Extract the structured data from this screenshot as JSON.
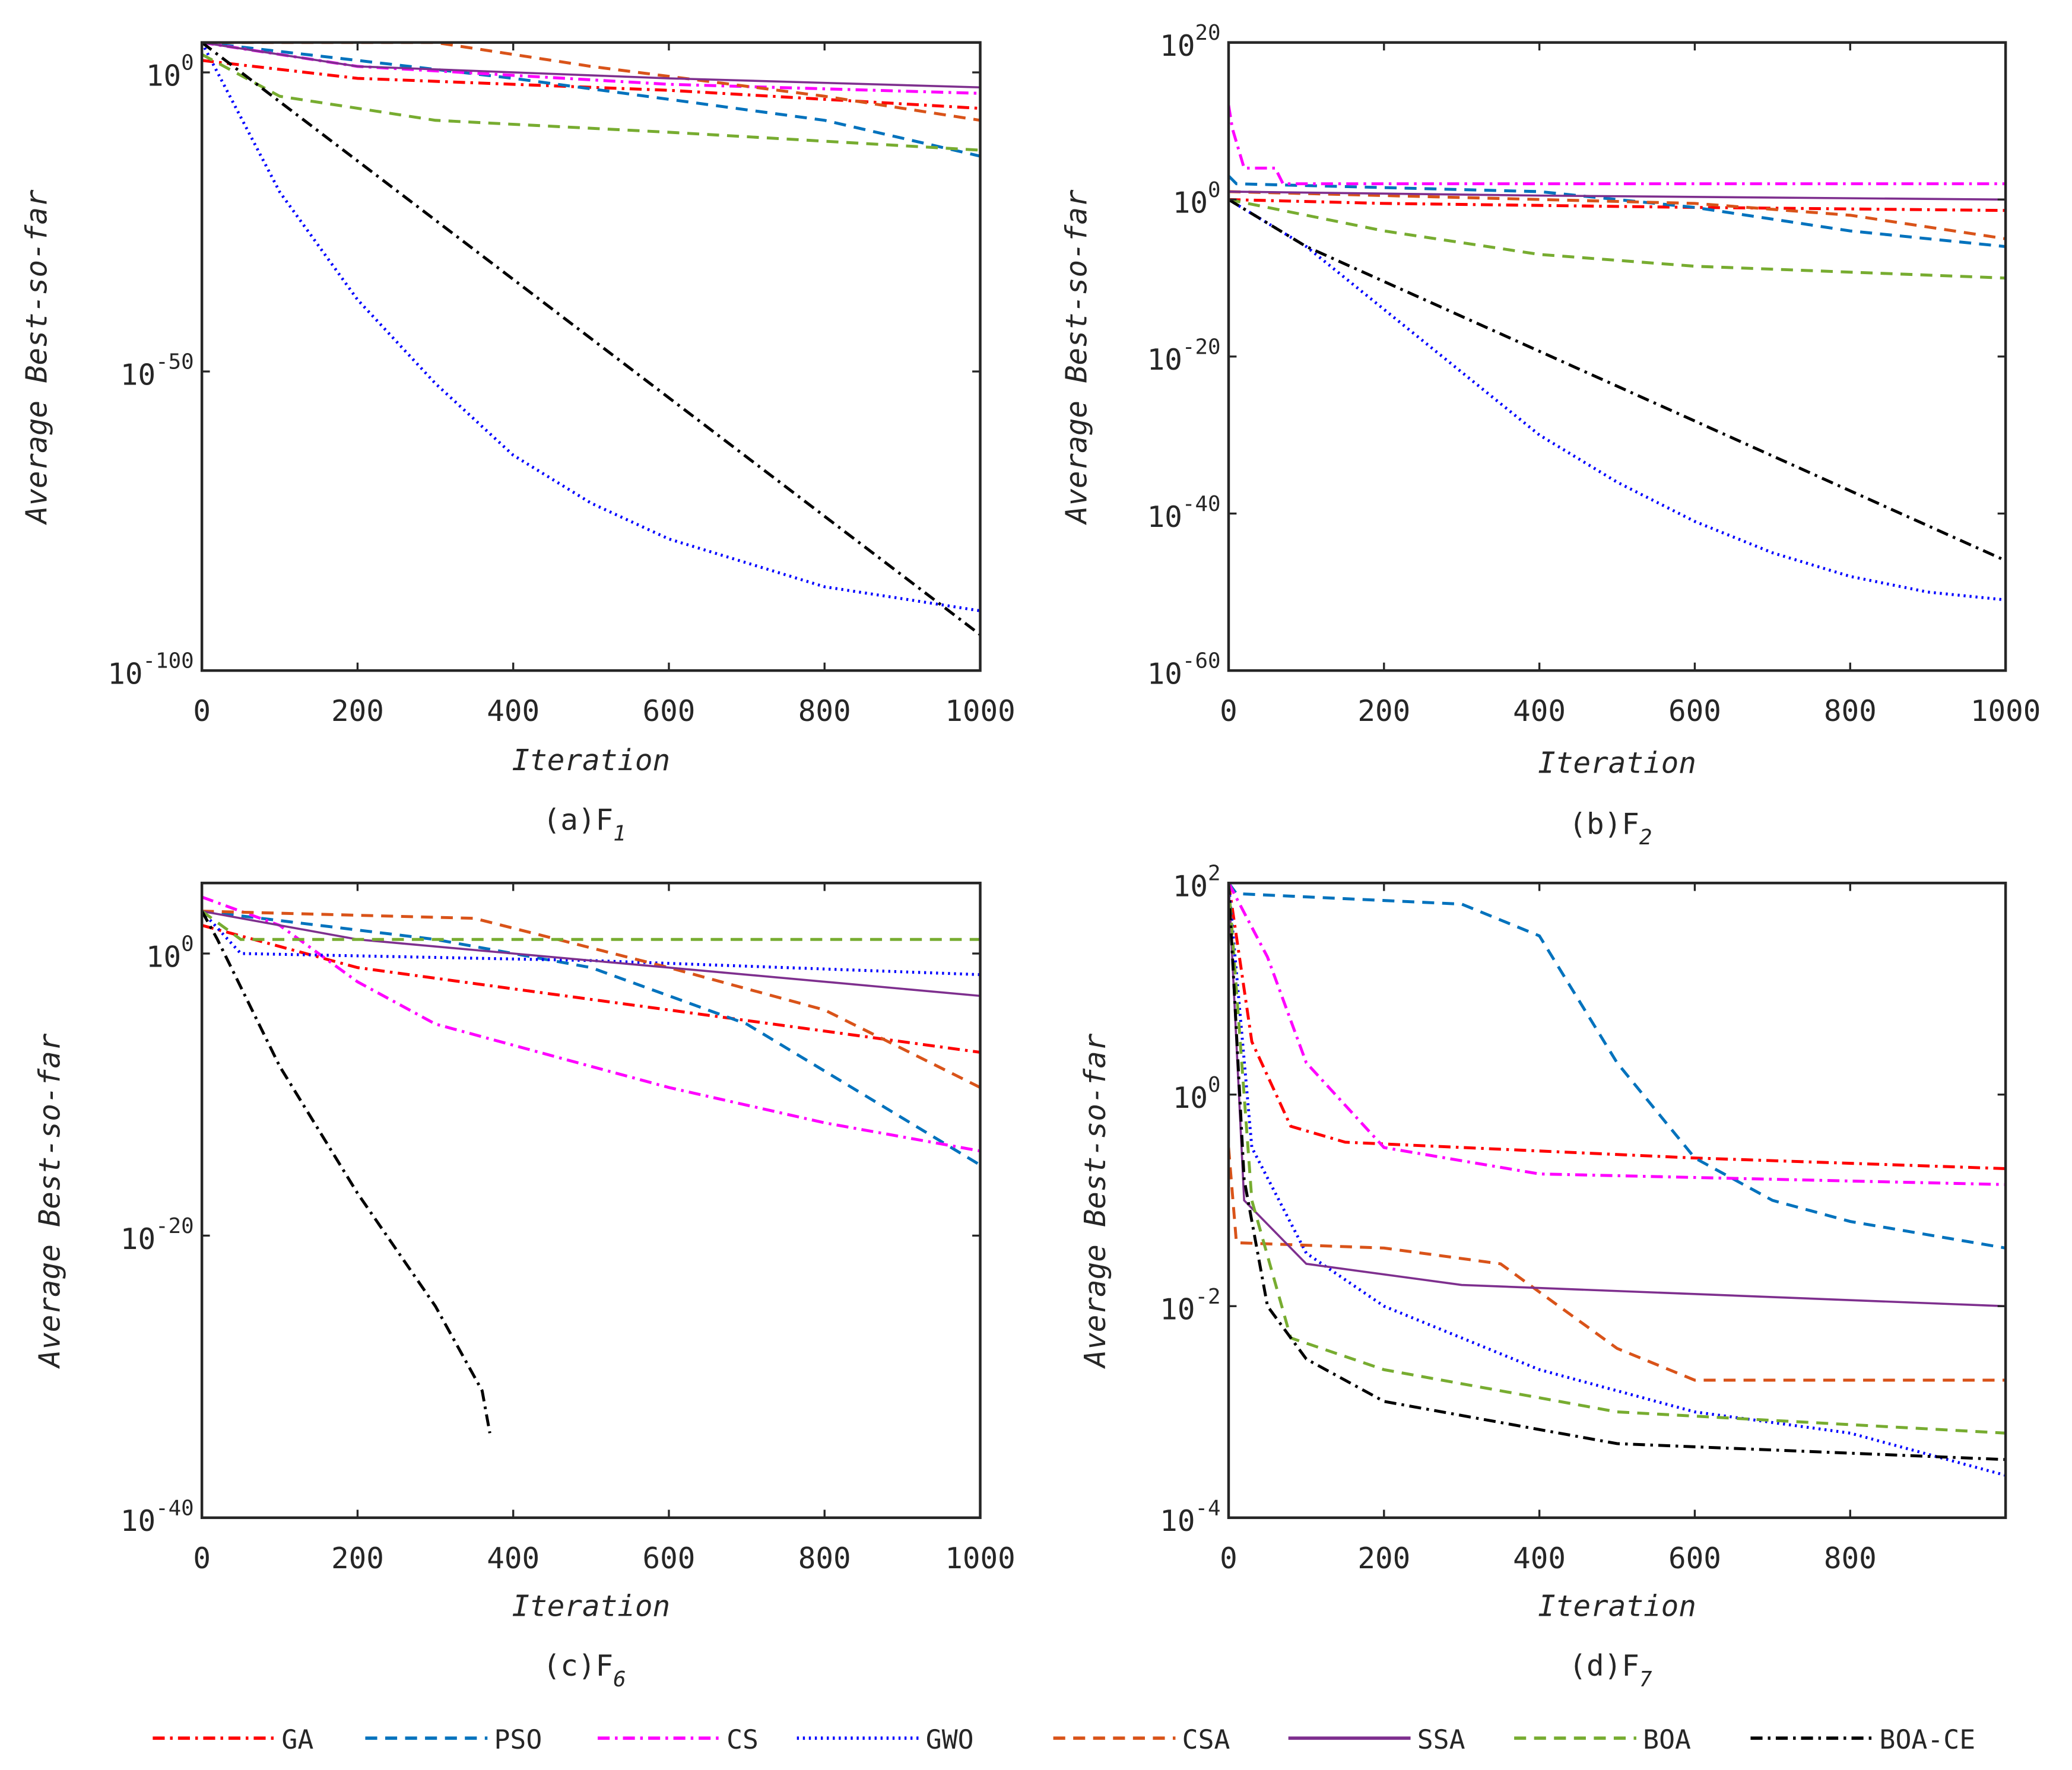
{
  "chart_data": [
    {
      "type": "line",
      "id": "a",
      "caption": "(a)F",
      "caption_sub": "1",
      "xlabel": "Iteration",
      "ylabel": "Average Best-so-far",
      "yscale": "log",
      "xlim": [
        0,
        1000
      ],
      "ylim": [
        1e-100,
        100000.0
      ],
      "xticks": [
        0,
        200,
        400,
        600,
        800,
        1000
      ],
      "yticks_exp": [
        "0",
        "-50",
        "-100"
      ],
      "yticks": [
        1,
        1e-50,
        1e-100
      ],
      "series": [
        {
          "name": "GA",
          "x": [
            0,
            200,
            600,
            1000
          ],
          "y": [
            100.0,
            0.1,
            0.001,
            1e-06
          ]
        },
        {
          "name": "PSO",
          "x": [
            0,
            200,
            400,
            600,
            800,
            1000
          ],
          "y": [
            100000.0,
            100.0,
            0.1,
            3.1623e-05,
            1e-08,
            1e-14
          ]
        },
        {
          "name": "CS",
          "x": [
            0,
            200,
            600,
            1000
          ],
          "y": [
            100000.0,
            10.0,
            0.01,
            0.00031623
          ]
        },
        {
          "name": "GWO",
          "x": [
            0,
            100,
            200,
            300,
            400,
            500,
            600,
            700,
            800,
            900,
            1000
          ],
          "y": [
            100000.0,
            1e-20,
            1e-38,
            1e-52,
            1e-64,
            1e-72,
            1e-78,
            1e-82,
            1e-86,
            1e-88,
            1e-90
          ]
        },
        {
          "name": "CSA",
          "x": [
            0,
            300,
            500,
            800,
            1000
          ],
          "y": [
            100000.0,
            100000.0,
            10.0,
            0.0001,
            1e-08
          ]
        },
        {
          "name": "SSA",
          "x": [
            0,
            200,
            600,
            1000
          ],
          "y": [
            100000.0,
            10.0,
            0.1,
            0.0031623
          ]
        },
        {
          "name": "BOA",
          "x": [
            0,
            100,
            300,
            600,
            1000
          ],
          "y": [
            1000.0,
            0.0001,
            1e-08,
            1e-10,
            1e-13
          ]
        },
        {
          "name": "BOA-CE",
          "x": [
            0,
            1000
          ],
          "y": [
            100000.0,
            1e-94
          ]
        }
      ]
    },
    {
      "type": "line",
      "id": "b",
      "caption": "(b)F",
      "caption_sub": "2",
      "xlabel": "Iteration",
      "ylabel": "Average Best-so-far",
      "yscale": "log",
      "xlim": [
        0,
        1000
      ],
      "ylim": [
        1e-60,
        1e+20
      ],
      "xticks": [
        0,
        200,
        400,
        600,
        800,
        1000
      ],
      "yticks_exp": [
        "20",
        "0",
        "-20",
        "-40",
        "-60"
      ],
      "yticks": [
        1e+20,
        1,
        1e-20,
        1e-40,
        1e-60
      ],
      "series": [
        {
          "name": "GA",
          "x": [
            0,
            200,
            600,
            1000
          ],
          "y": [
            1,
            0.31623,
            0.1,
            0.039811
          ]
        },
        {
          "name": "PSO",
          "x": [
            0,
            10,
            400,
            600,
            800,
            1000
          ],
          "y": [
            1000.0,
            100.0,
            10.0,
            0.1,
            0.0001,
            1e-06
          ]
        },
        {
          "name": "CS",
          "x": [
            0,
            5,
            20,
            60,
            70,
            1000
          ],
          "y": [
            1000000000000.0,
            1000000000.0,
            10000.0,
            10000.0,
            100.0,
            100.0
          ]
        },
        {
          "name": "GWO",
          "x": [
            0,
            100,
            200,
            300,
            400,
            500,
            600,
            700,
            800,
            900,
            1000
          ],
          "y": [
            1,
            1e-06,
            1e-14,
            1e-22,
            1e-30,
            1e-36,
            1e-41,
            1e-45,
            1e-48,
            1e-50,
            1e-51
          ]
        },
        {
          "name": "CSA",
          "x": [
            0,
            600,
            800,
            1000
          ],
          "y": [
            10.0,
            0.31623,
            0.01,
            1e-05
          ]
        },
        {
          "name": "SSA",
          "x": [
            0,
            400,
            1000
          ],
          "y": [
            10.0,
            3.1623,
            1
          ]
        },
        {
          "name": "BOA",
          "x": [
            0,
            200,
            400,
            600,
            1000
          ],
          "y": [
            1,
            0.0001,
            1e-07,
            3.1623e-09,
            1e-10
          ]
        },
        {
          "name": "BOA-CE",
          "x": [
            0,
            100,
            1000
          ],
          "y": [
            1,
            1e-06,
            1e-46
          ]
        }
      ]
    },
    {
      "type": "line",
      "id": "c",
      "caption": "(c)F",
      "caption_sub": "6",
      "xlabel": "Iteration",
      "ylabel": "Average Best-so-far",
      "yscale": "log",
      "xlim": [
        0,
        1000
      ],
      "ylim": [
        1e-40,
        100000.0
      ],
      "xticks": [
        0,
        200,
        400,
        600,
        800,
        1000
      ],
      "yticks_exp": [
        "0",
        "-20",
        "-40"
      ],
      "yticks": [
        1,
        1e-20,
        1e-40
      ],
      "series": [
        {
          "name": "GA",
          "x": [
            0,
            200,
            400,
            600,
            800,
            1000
          ],
          "y": [
            100.0,
            0.1,
            0.0031623,
            0.0001,
            3.1623e-06,
            1e-07
          ]
        },
        {
          "name": "PSO",
          "x": [
            0,
            300,
            500,
            700,
            850,
            1000
          ],
          "y": [
            1000.0,
            10.0,
            0.1,
            1e-05,
            1e-10,
            1e-15
          ]
        },
        {
          "name": "CS",
          "x": [
            0,
            100,
            200,
            300,
            500,
            600,
            800,
            1000
          ],
          "y": [
            10000.0,
            100.0,
            0.01,
            1e-05,
            1e-08,
            3.1623e-10,
            1e-12,
            1e-14
          ]
        },
        {
          "name": "GWO",
          "x": [
            0,
            50,
            500,
            1000
          ],
          "y": [
            1000.0,
            1,
            0.31623,
            0.031623
          ]
        },
        {
          "name": "CSA",
          "x": [
            0,
            350,
            600,
            800,
            1000
          ],
          "y": [
            1000.0,
            316.23,
            0.1,
            0.0001,
            3.1623e-10
          ]
        },
        {
          "name": "SSA",
          "x": [
            0,
            200,
            600,
            1000
          ],
          "y": [
            1000.0,
            10.0,
            0.1,
            0.001
          ]
        },
        {
          "name": "BOA",
          "x": [
            0,
            50,
            1000
          ],
          "y": [
            1000.0,
            10.0,
            10.0
          ]
        },
        {
          "name": "BOA-CE",
          "x": [
            0,
            20,
            100,
            200,
            300,
            360,
            370
          ],
          "y": [
            1000.0,
            10.0,
            1e-08,
            1e-17,
            1e-25,
            1e-31,
            1e-34
          ]
        }
      ]
    },
    {
      "type": "line",
      "id": "d",
      "caption": "(d)F",
      "caption_sub": "7",
      "xlabel": "Iteration",
      "ylabel": "Average Best-so-far",
      "yscale": "log",
      "xlim": [
        0,
        1000
      ],
      "ylim": [
        0.0001,
        100.0
      ],
      "xticks": [
        0,
        200,
        400,
        600,
        800
      ],
      "yticks_exp": [
        "2",
        "0",
        "-2",
        "-4"
      ],
      "yticks": [
        100,
        1,
        0.01,
        0.0001
      ],
      "series": [
        {
          "name": "GA",
          "x": [
            0,
            30,
            80,
            150,
            600,
            1000
          ],
          "y": [
            100.0,
            3.1623,
            0.50119,
            0.35481,
            0.25119,
            0.19953
          ]
        },
        {
          "name": "PSO",
          "x": [
            0,
            10,
            300,
            400,
            500,
            600,
            700,
            800,
            1000
          ],
          "y": [
            100.0,
            79.433,
            63.096,
            31.623,
            1.9953,
            0.25119,
            0.1,
            0.063096,
            0.035481
          ]
        },
        {
          "name": "CS",
          "x": [
            0,
            50,
            100,
            200,
            400,
            1000
          ],
          "y": [
            100.0,
            19.953,
            1.9953,
            0.31623,
            0.17783,
            0.14125
          ]
        },
        {
          "name": "GWO",
          "x": [
            0,
            30,
            100,
            200,
            400,
            600,
            800,
            1000
          ],
          "y": [
            100.0,
            0.31623,
            0.031623,
            0.01,
            0.0025119,
            0.001,
            0.00063096,
            0.00025119
          ]
        },
        {
          "name": "CSA",
          "x": [
            0,
            10,
            200,
            350,
            500,
            600,
            1000
          ],
          "y": [
            0.31623,
            0.039811,
            0.035481,
            0.025119,
            0.0039811,
            0.0019953,
            0.0019953
          ]
        },
        {
          "name": "SSA",
          "x": [
            0,
            20,
            100,
            300,
            1000
          ],
          "y": [
            100.0,
            0.1,
            0.025119,
            0.015849,
            0.01
          ]
        },
        {
          "name": "BOA",
          "x": [
            0,
            30,
            80,
            200,
            500,
            1000
          ],
          "y": [
            100.0,
            0.1,
            0.0050119,
            0.0025119,
            0.001,
            0.00063096
          ]
        },
        {
          "name": "BOA-CE",
          "x": [
            0,
            20,
            50,
            100,
            200,
            500,
            1000
          ],
          "y": [
            100.0,
            0.15849,
            0.01,
            0.0031623,
            0.0012589,
            0.00050119,
            0.00035481
          ]
        }
      ]
    }
  ],
  "legend": {
    "placement": "bottom",
    "items": [
      {
        "name": "GA",
        "color": "#ff0000",
        "style": "dashdot"
      },
      {
        "name": "PSO",
        "color": "#0072bd",
        "style": "dashed"
      },
      {
        "name": "CS",
        "color": "#ff00ff",
        "style": "dashdot"
      },
      {
        "name": "GWO",
        "color": "#0000ff",
        "style": "dotted"
      },
      {
        "name": "CSA",
        "color": "#d95319",
        "style": "dashed"
      },
      {
        "name": "SSA",
        "color": "#7e2f8e",
        "style": "solid"
      },
      {
        "name": "BOA",
        "color": "#77ac30",
        "style": "dashed"
      },
      {
        "name": "BOA-CE",
        "color": "#000000",
        "style": "dashdot"
      }
    ]
  }
}
